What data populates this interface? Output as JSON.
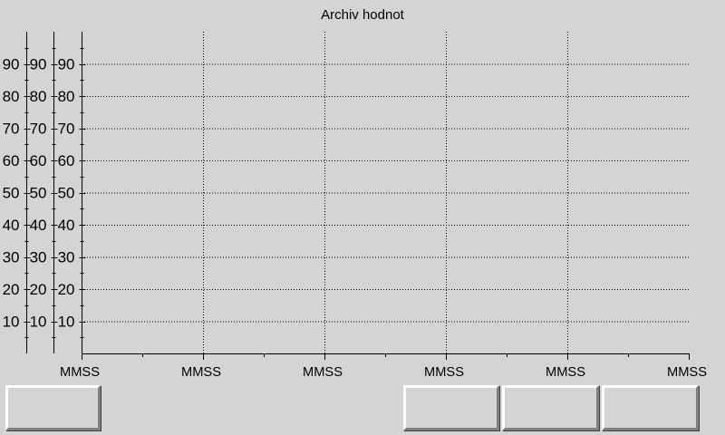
{
  "window": {
    "title": "Archiv hodnot"
  },
  "chart_data": {
    "type": "line",
    "title": "Archiv hodnot",
    "y_axes": [
      {
        "ticks": [
          10,
          20,
          30,
          40,
          50,
          60,
          70,
          80,
          90
        ],
        "ylim": [
          0,
          100
        ]
      },
      {
        "ticks": [
          10,
          20,
          30,
          40,
          50,
          60,
          70,
          80,
          90
        ],
        "ylim": [
          0,
          100
        ]
      },
      {
        "ticks": [
          10,
          20,
          30,
          40,
          50,
          60,
          70,
          80,
          90
        ],
        "ylim": [
          0,
          100
        ]
      }
    ],
    "x_tick_labels": [
      "MMSS",
      "MMSS",
      "MMSS",
      "MMSS",
      "MMSS",
      "MMSS"
    ],
    "grid": true,
    "series": []
  },
  "buttons": [
    {
      "label": ""
    },
    {
      "label": ""
    },
    {
      "label": ""
    },
    {
      "label": ""
    }
  ]
}
